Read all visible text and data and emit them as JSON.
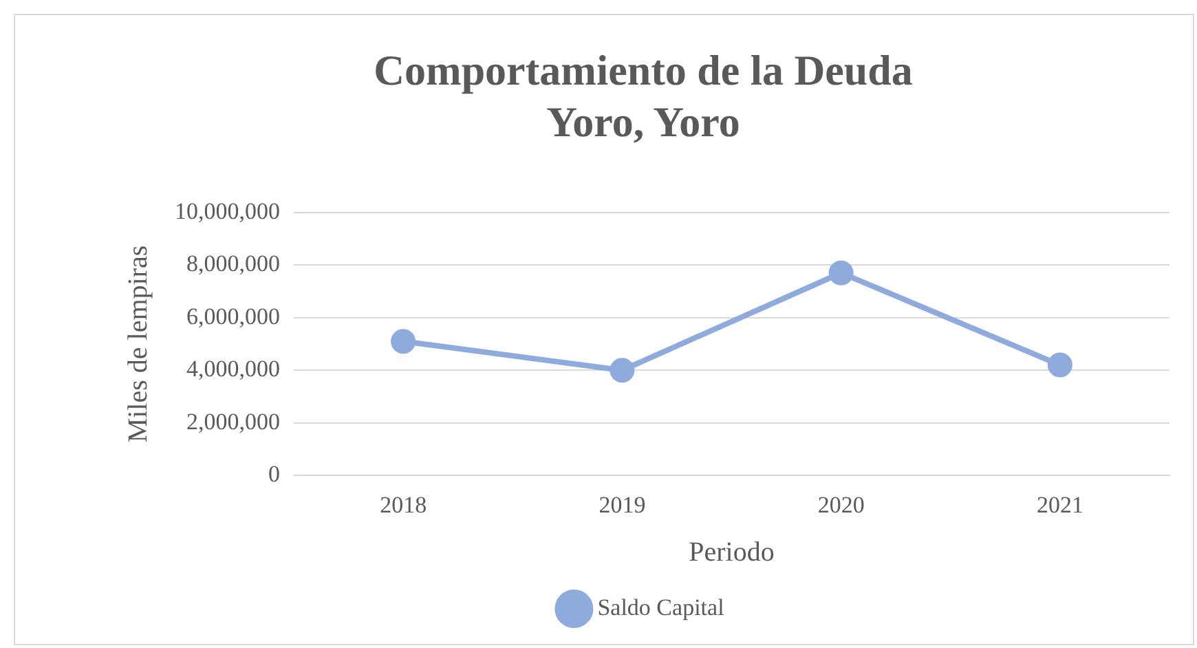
{
  "chart_data": {
    "type": "line",
    "title": [
      "Comportamiento de la Deuda",
      "Yoro, Yoro"
    ],
    "xlabel": "Periodo",
    "ylabel": "Miles de lempiras",
    "categories": [
      "2018",
      "2019",
      "2020",
      "2021"
    ],
    "series": [
      {
        "name": "Saldo Capital",
        "color": "#8faadc",
        "values": [
          5100000,
          4000000,
          7700000,
          4200000
        ]
      }
    ],
    "ylim": [
      0,
      10000000
    ],
    "yticks": [
      0,
      {
        "value": 2000000,
        "label": "2,000,000"
      },
      {
        "value": 4000000,
        "label": "4,000,000"
      },
      {
        "value": 6000000,
        "label": "6,000,000"
      },
      {
        "value": 8000000,
        "label": "8,000,000"
      },
      {
        "value": 10000000,
        "label": "10,000,000"
      }
    ],
    "grid": "y",
    "legend": "bottom",
    "marker": "circle",
    "line_style": "solid"
  }
}
